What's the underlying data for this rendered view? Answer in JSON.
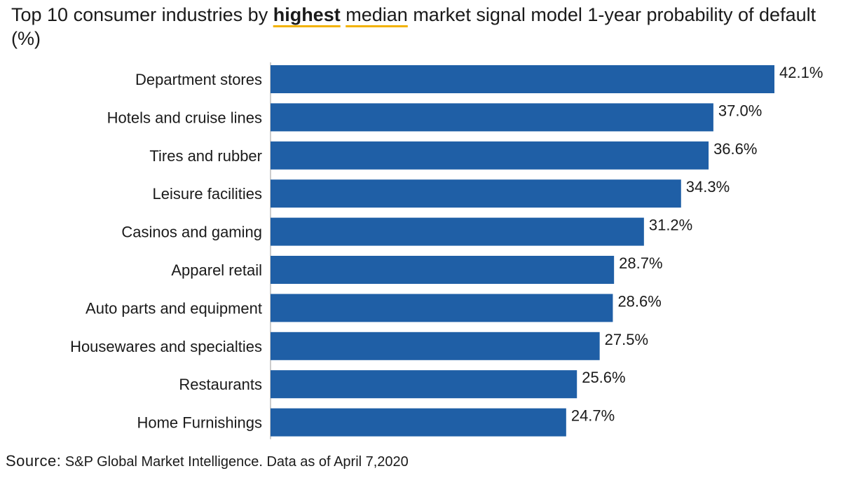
{
  "title": {
    "prefix": "Top 10 consumer industries by",
    "emphasis": "highest",
    "median": "median",
    "suffix": "market signal model 1-year probability of default (%)"
  },
  "source": {
    "label": "Source:",
    "text": "S&P Global Market Intelligence. Data as of April 7,2020"
  },
  "colors": {
    "bar": "#1f5fa6",
    "underline": "#f2b200"
  },
  "chart_data": {
    "type": "bar",
    "orientation": "horizontal",
    "title": "Top 10 consumer industries by highest median market signal model 1-year probability of default (%)",
    "xlabel": "",
    "ylabel": "",
    "xlim": [
      0,
      42.1
    ],
    "categories": [
      "Department stores",
      "Hotels and cruise lines",
      "Tires and rubber",
      "Leisure facilities",
      "Casinos and gaming",
      "Apparel retail",
      "Auto parts and equipment",
      "Housewares and specialties",
      "Restaurants",
      "Home Furnishings"
    ],
    "values": [
      42.1,
      37.0,
      36.6,
      34.3,
      31.2,
      28.7,
      28.6,
      27.5,
      25.6,
      24.7
    ],
    "value_labels": [
      "42.1%",
      "37.0%",
      "36.6%",
      "34.3%",
      "31.2%",
      "28.7%",
      "28.6%",
      "27.5%",
      "25.6%",
      "24.7%"
    ],
    "grid": false,
    "legend": "none"
  }
}
